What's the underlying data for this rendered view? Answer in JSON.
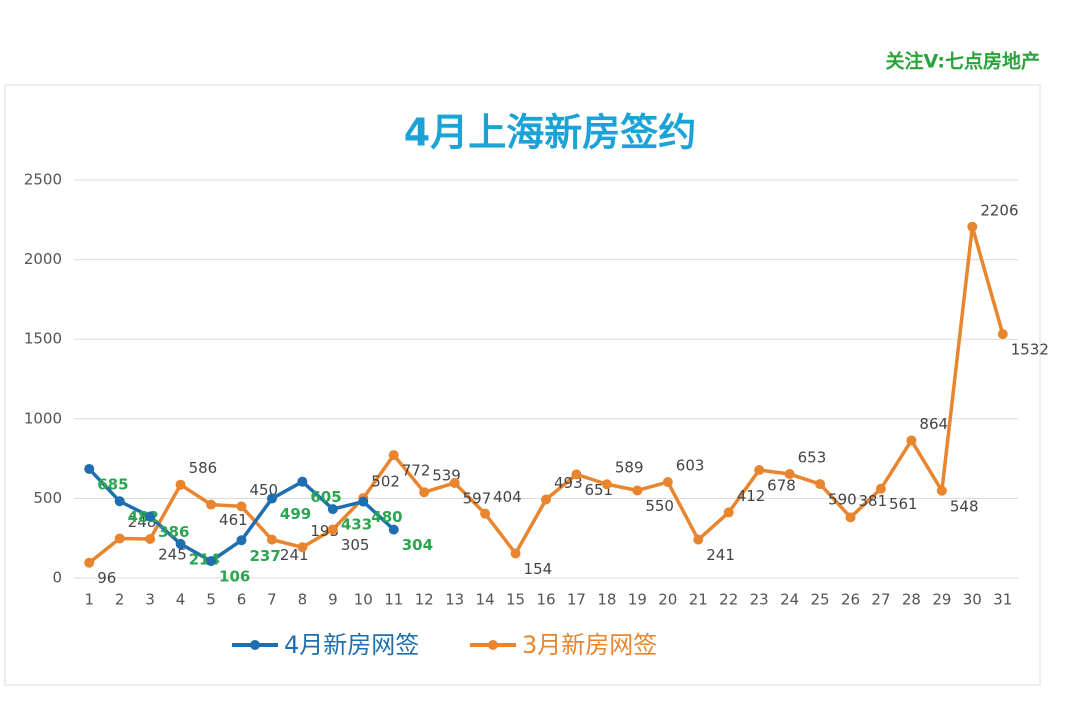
{
  "chart_data": {
    "type": "line",
    "watermark": "关注V:七点房地产",
    "title": "4月上海新房签约",
    "categories": [
      "1",
      "2",
      "3",
      "4",
      "5",
      "6",
      "7",
      "8",
      "9",
      "10",
      "11",
      "12",
      "13",
      "14",
      "15",
      "16",
      "17",
      "18",
      "19",
      "20",
      "21",
      "22",
      "23",
      "24",
      "25",
      "26",
      "27",
      "28",
      "29",
      "30",
      "31"
    ],
    "series": [
      {
        "name": "4月新房网签",
        "color": "#1f6fb0",
        "label_color": "#2aa650",
        "values": [
          685,
          482,
          386,
          214,
          106,
          237,
          499,
          605,
          433,
          480,
          304,
          null,
          null,
          null,
          null,
          null,
          null,
          null,
          null,
          null,
          null,
          null,
          null,
          null,
          null,
          null,
          null,
          null,
          null,
          null,
          null
        ]
      },
      {
        "name": "3月新房网签",
        "color": "#e8852e",
        "label_color": "#444444",
        "values": [
          96,
          248,
          245,
          586,
          461,
          450,
          241,
          193,
          305,
          502,
          772,
          539,
          597,
          404,
          154,
          493,
          651,
          589,
          550,
          603,
          241,
          412,
          678,
          653,
          590,
          381,
          561,
          864,
          548,
          2206,
          1532
        ]
      }
    ],
    "ylim": [
      0,
      2500
    ],
    "yticks": [
      0,
      500,
      1000,
      1500,
      2000,
      2500
    ],
    "grid": true
  }
}
